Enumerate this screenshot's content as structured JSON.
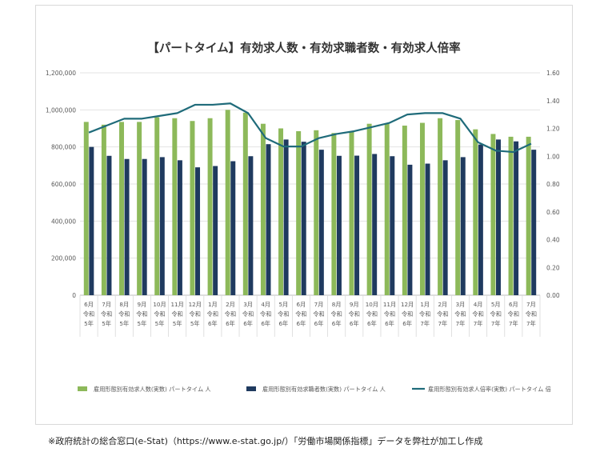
{
  "chart_data": {
    "type": "bar",
    "title": "【パートタイム】有効求人数・有効求職者数・有効求人倍率",
    "categories": [
      [
        "6月",
        "令和",
        "5年"
      ],
      [
        "7月",
        "令和",
        "5年"
      ],
      [
        "8月",
        "令和",
        "5年"
      ],
      [
        "9月",
        "令和",
        "5年"
      ],
      [
        "10月",
        "令和",
        "5年"
      ],
      [
        "11月",
        "令和",
        "5年"
      ],
      [
        "12月",
        "令和",
        "5年"
      ],
      [
        "1月",
        "令和",
        "6年"
      ],
      [
        "2月",
        "令和",
        "6年"
      ],
      [
        "3月",
        "令和",
        "6年"
      ],
      [
        "4月",
        "令和",
        "6年"
      ],
      [
        "5月",
        "令和",
        "6年"
      ],
      [
        "6月",
        "令和",
        "6年"
      ],
      [
        "7月",
        "令和",
        "6年"
      ],
      [
        "8月",
        "令和",
        "6年"
      ],
      [
        "9月",
        "令和",
        "6年"
      ],
      [
        "10月",
        "令和",
        "6年"
      ],
      [
        "11月",
        "令和",
        "6年"
      ],
      [
        "12月",
        "令和",
        "6年"
      ],
      [
        "1月",
        "令和",
        "7年"
      ],
      [
        "2月",
        "令和",
        "7年"
      ],
      [
        "3月",
        "令和",
        "7年"
      ],
      [
        "4月",
        "令和",
        "7年"
      ],
      [
        "5月",
        "令和",
        "7年"
      ],
      [
        "6月",
        "令和",
        "7年"
      ],
      [
        "7月",
        "令和",
        "7年"
      ]
    ],
    "series": [
      {
        "name": "雇用形態別有効求人数(実数) パートタイム 人",
        "type": "bar",
        "axis": "left",
        "color": "#8db95a",
        "values": [
          935000,
          920000,
          935000,
          935000,
          960000,
          955000,
          940000,
          955000,
          1000000,
          985000,
          925000,
          900000,
          885000,
          890000,
          875000,
          885000,
          925000,
          925000,
          915000,
          930000,
          955000,
          945000,
          895000,
          870000,
          855000,
          855000
        ]
      },
      {
        "name": "雇用形態別有効求職者数(実数) パートタイム 人",
        "type": "bar",
        "axis": "left",
        "color": "#1f3a5f",
        "values": [
          800000,
          752000,
          735000,
          735000,
          745000,
          728000,
          690000,
          697000,
          723000,
          750000,
          815000,
          840000,
          828000,
          785000,
          752000,
          753000,
          762000,
          750000,
          704000,
          710000,
          728000,
          745000,
          813000,
          840000,
          830000,
          785000
        ]
      },
      {
        "name": "雇用形態別有効求人倍率(実数) パートタイム 倍",
        "type": "line",
        "axis": "right",
        "color": "#1f6b7a",
        "values": [
          1.17,
          1.22,
          1.27,
          1.27,
          1.29,
          1.31,
          1.37,
          1.37,
          1.38,
          1.31,
          1.13,
          1.07,
          1.07,
          1.13,
          1.16,
          1.18,
          1.21,
          1.24,
          1.3,
          1.31,
          1.31,
          1.27,
          1.1,
          1.04,
          1.03,
          1.09
        ]
      }
    ],
    "yticks_left": [
      "0",
      "200,000",
      "400,000",
      "600,000",
      "800,000",
      "1,000,000",
      "1,200,000"
    ],
    "yticks_right": [
      "0.00",
      "0.20",
      "0.40",
      "0.60",
      "0.80",
      "1.00",
      "1.20",
      "1.40",
      "1.60"
    ],
    "ylim_left": [
      0,
      1200000
    ],
    "ylim_right": [
      0,
      1.6
    ],
    "grid": true,
    "legend_position": "bottom"
  },
  "source_note": "※政府統計の総合窓口(e-Stat)（https://www.e-stat.go.jp/）「労働市場関係指標」データを弊社が加工し作成"
}
